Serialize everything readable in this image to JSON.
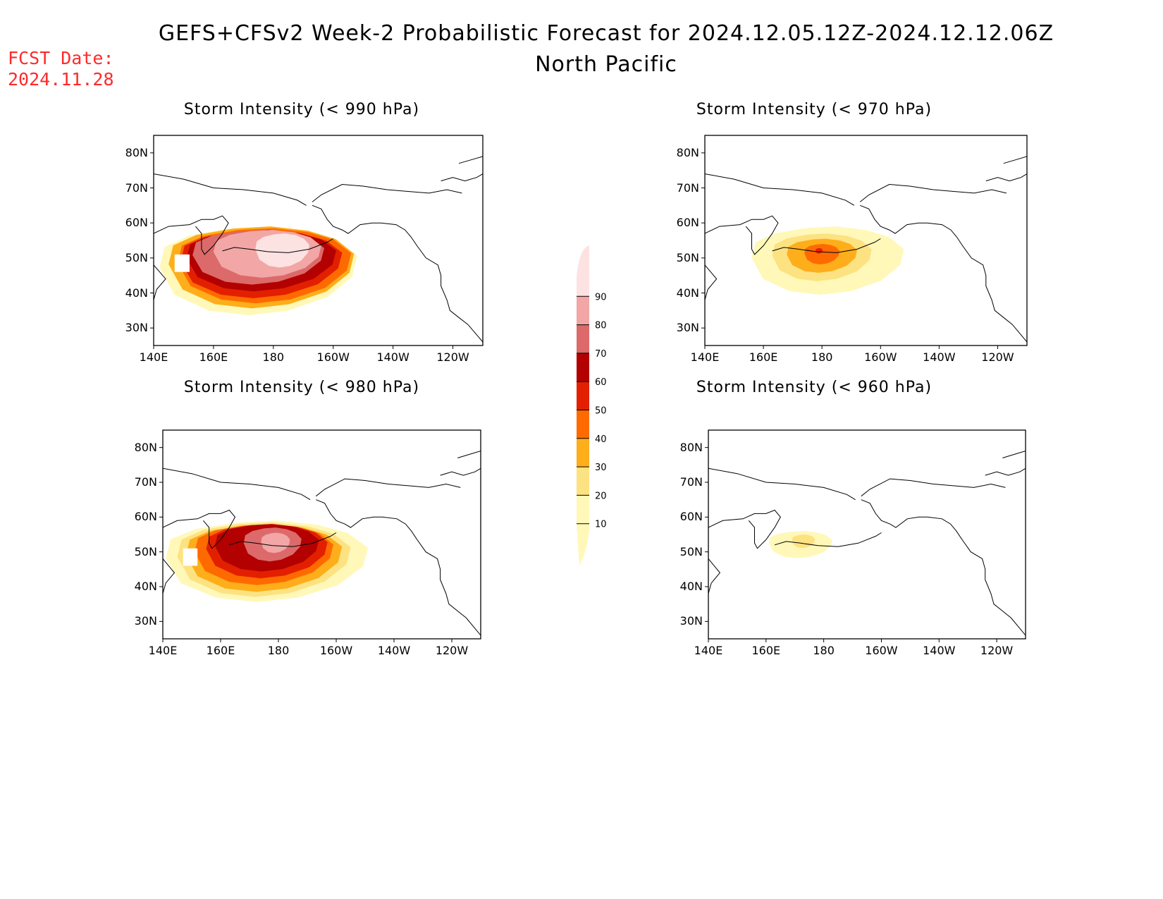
{
  "header": {
    "title": "GEFS+CFSv2 Week-2 Probabilistic Forecast for 2024.12.05.12Z-2024.12.12.06Z",
    "subtitle": "North Pacific",
    "fcst_date_label": "FCST Date:",
    "fcst_date_value": "2024.11.28"
  },
  "colors": {
    "fcst_date": "#ff2a2a",
    "levels": [
      "#fff8b8",
      "#fde282",
      "#fdae1a",
      "#ff6a00",
      "#e22000",
      "#b30000",
      "#dc6a6a",
      "#f2a6a6",
      "#fde2e2"
    ]
  },
  "axes": {
    "lat_labels": [
      "80N",
      "70N",
      "60N",
      "50N",
      "40N",
      "30N"
    ],
    "lon_labels": [
      "140E",
      "160E",
      "180",
      "160W",
      "140W",
      "120W"
    ]
  },
  "panels": [
    {
      "id": "p990",
      "title": "Storm Intensity (< 990 hPa)"
    },
    {
      "id": "p970",
      "title": "Storm Intensity (< 970 hPa)"
    },
    {
      "id": "p980",
      "title": "Storm Intensity (< 980 hPa)"
    },
    {
      "id": "p960",
      "title": "Storm Intensity (< 960 hPa)"
    }
  ],
  "colorbar": {
    "labels": [
      "90",
      "80",
      "70",
      "60",
      "50",
      "40",
      "30",
      "20",
      "10"
    ]
  }
}
